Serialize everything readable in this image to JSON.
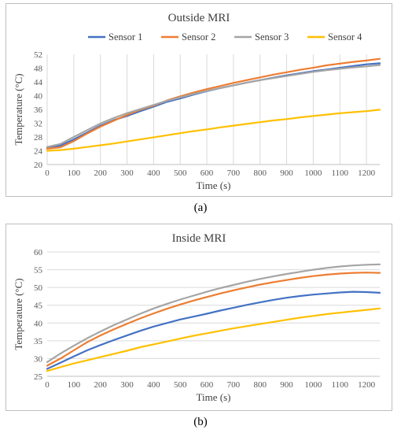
{
  "figures": [
    {
      "caption": "(a)"
    },
    {
      "caption": "(b)"
    }
  ],
  "chart_data": [
    {
      "type": "line",
      "title": "Outside MRI",
      "xlabel": "Time (s)",
      "ylabel": "Temperature (°C)",
      "xlim": [
        0,
        1250
      ],
      "ylim": [
        20,
        52
      ],
      "xticks": [
        0,
        100,
        200,
        300,
        400,
        500,
        600,
        700,
        800,
        900,
        1000,
        1100,
        1200
      ],
      "yticks": [
        20,
        24,
        28,
        32,
        36,
        40,
        44,
        48,
        52
      ],
      "grid": "vertical",
      "legend": "top",
      "x": [
        0,
        50,
        100,
        150,
        200,
        250,
        300,
        350,
        400,
        450,
        500,
        550,
        600,
        650,
        700,
        750,
        800,
        850,
        900,
        950,
        1000,
        1050,
        1100,
        1150,
        1200,
        1250
      ],
      "series": [
        {
          "name": "Sensor 1",
          "color": "#4472C4",
          "values": [
            24.8,
            25.5,
            27.3,
            29.3,
            31.3,
            32.9,
            34.1,
            35.5,
            36.8,
            38.2,
            39.2,
            40.3,
            41.3,
            42.2,
            43.0,
            43.8,
            44.5,
            45.2,
            45.9,
            46.5,
            47.1,
            47.6,
            48.1,
            48.6,
            49.1,
            49.4
          ]
        },
        {
          "name": "Sensor 2",
          "color": "#ED7D31",
          "values": [
            24.6,
            25.0,
            26.8,
            29.0,
            31.0,
            32.7,
            34.4,
            35.9,
            37.1,
            38.6,
            39.8,
            40.9,
            41.9,
            42.8,
            43.7,
            44.5,
            45.3,
            46.1,
            46.8,
            47.5,
            48.1,
            48.8,
            49.3,
            49.8,
            50.2,
            50.7
          ]
        },
        {
          "name": "Sensor 3",
          "color": "#A5A5A5",
          "values": [
            25.1,
            26.0,
            28.0,
            30.0,
            31.9,
            33.5,
            34.9,
            36.1,
            37.3,
            38.5,
            39.5,
            40.5,
            41.4,
            42.2,
            43.0,
            43.8,
            44.5,
            45.1,
            45.7,
            46.3,
            46.9,
            47.4,
            47.8,
            48.2,
            48.5,
            48.9
          ]
        },
        {
          "name": "Sensor 4",
          "color": "#FFC000",
          "values": [
            24.0,
            24.2,
            24.6,
            25.1,
            25.6,
            26.1,
            26.7,
            27.3,
            27.9,
            28.5,
            29.1,
            29.7,
            30.2,
            30.8,
            31.3,
            31.8,
            32.3,
            32.8,
            33.2,
            33.7,
            34.1,
            34.5,
            34.9,
            35.2,
            35.5,
            35.9
          ]
        }
      ]
    },
    {
      "type": "line",
      "title": "Inside MRI",
      "xlabel": "Time (s)",
      "ylabel": "Temperature (°C)",
      "xlim": [
        0,
        1250
      ],
      "ylim": [
        25,
        60
      ],
      "xticks": [
        0,
        100,
        200,
        300,
        400,
        500,
        600,
        700,
        800,
        900,
        1000,
        1100,
        1200
      ],
      "yticks": [
        25,
        30,
        35,
        40,
        45,
        50,
        55,
        60
      ],
      "grid": "horizontal",
      "legend": "none",
      "x": [
        0,
        50,
        100,
        150,
        200,
        250,
        300,
        350,
        400,
        450,
        500,
        550,
        600,
        650,
        700,
        750,
        800,
        850,
        900,
        950,
        1000,
        1050,
        1100,
        1150,
        1200,
        1250
      ],
      "series": [
        {
          "name": "Sensor 1",
          "color": "#4472C4",
          "values": [
            27.1,
            28.8,
            30.6,
            32.3,
            33.8,
            35.2,
            36.5,
            37.8,
            39.0,
            40.0,
            41.0,
            41.8,
            42.6,
            43.5,
            44.3,
            45.1,
            45.8,
            46.5,
            47.1,
            47.6,
            48.0,
            48.3,
            48.6,
            48.8,
            48.7,
            48.5
          ]
        },
        {
          "name": "Sensor 2",
          "color": "#ED7D31",
          "values": [
            28.0,
            30.0,
            32.3,
            34.6,
            36.5,
            38.2,
            39.8,
            41.3,
            42.7,
            44.0,
            45.2,
            46.3,
            47.3,
            48.3,
            49.2,
            50.0,
            50.8,
            51.5,
            52.1,
            52.7,
            53.2,
            53.6,
            53.9,
            54.1,
            54.2,
            54.1
          ]
        },
        {
          "name": "Sensor 3",
          "color": "#A5A5A5",
          "values": [
            29.0,
            31.4,
            33.6,
            35.7,
            37.6,
            39.4,
            41.0,
            42.6,
            44.1,
            45.4,
            46.6,
            47.7,
            48.8,
            49.8,
            50.7,
            51.6,
            52.4,
            53.1,
            53.8,
            54.4,
            55.0,
            55.5,
            55.9,
            56.2,
            56.4,
            56.5
          ]
        },
        {
          "name": "Sensor 4",
          "color": "#FFC000",
          "values": [
            26.5,
            27.6,
            28.6,
            29.5,
            30.4,
            31.3,
            32.2,
            33.2,
            34.0,
            34.8,
            35.6,
            36.4,
            37.1,
            37.8,
            38.5,
            39.1,
            39.7,
            40.3,
            40.9,
            41.5,
            42.0,
            42.5,
            42.9,
            43.3,
            43.7,
            44.1
          ]
        }
      ]
    }
  ]
}
